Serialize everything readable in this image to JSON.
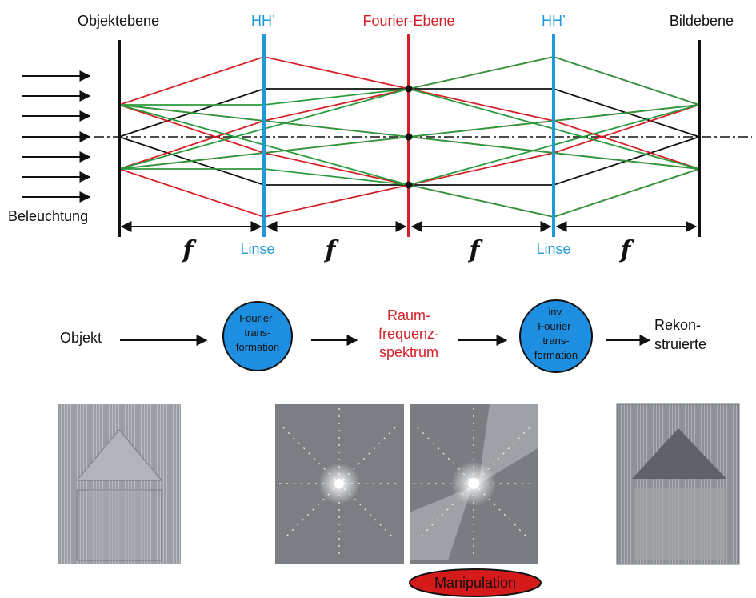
{
  "colors": {
    "black": "#111111",
    "red": "#d42027",
    "green": "#2a9b3c",
    "blue": "#1e9ad6",
    "circle_fill": "#1e8ee0",
    "manipulation_fill": "#d41a1a"
  },
  "optics": {
    "plane_objekt": "Objektebene",
    "plane_hh_left": "HH’",
    "plane_fourier": "Fourier-Ebene",
    "plane_hh_right": "HH’",
    "plane_bild": "Bildebene",
    "illumination": "Beleuchtung",
    "lens_left": "Linse",
    "lens_right": "Linse",
    "focal": [
      "f",
      "f",
      "f",
      "f"
    ]
  },
  "flow": {
    "objekt": "Objekt",
    "ft_lines": [
      "Fourier-",
      "trans-",
      "formation"
    ],
    "spectrum_lines": [
      "Raum-",
      "frequenz-",
      "spektrum"
    ],
    "inv_ft_lines": [
      "inv.",
      "Fourier-",
      "trans-",
      "formation"
    ],
    "recon_lines": [
      "Rekon-",
      "struierte"
    ]
  },
  "images": {
    "manipulation": "Manipulation"
  }
}
